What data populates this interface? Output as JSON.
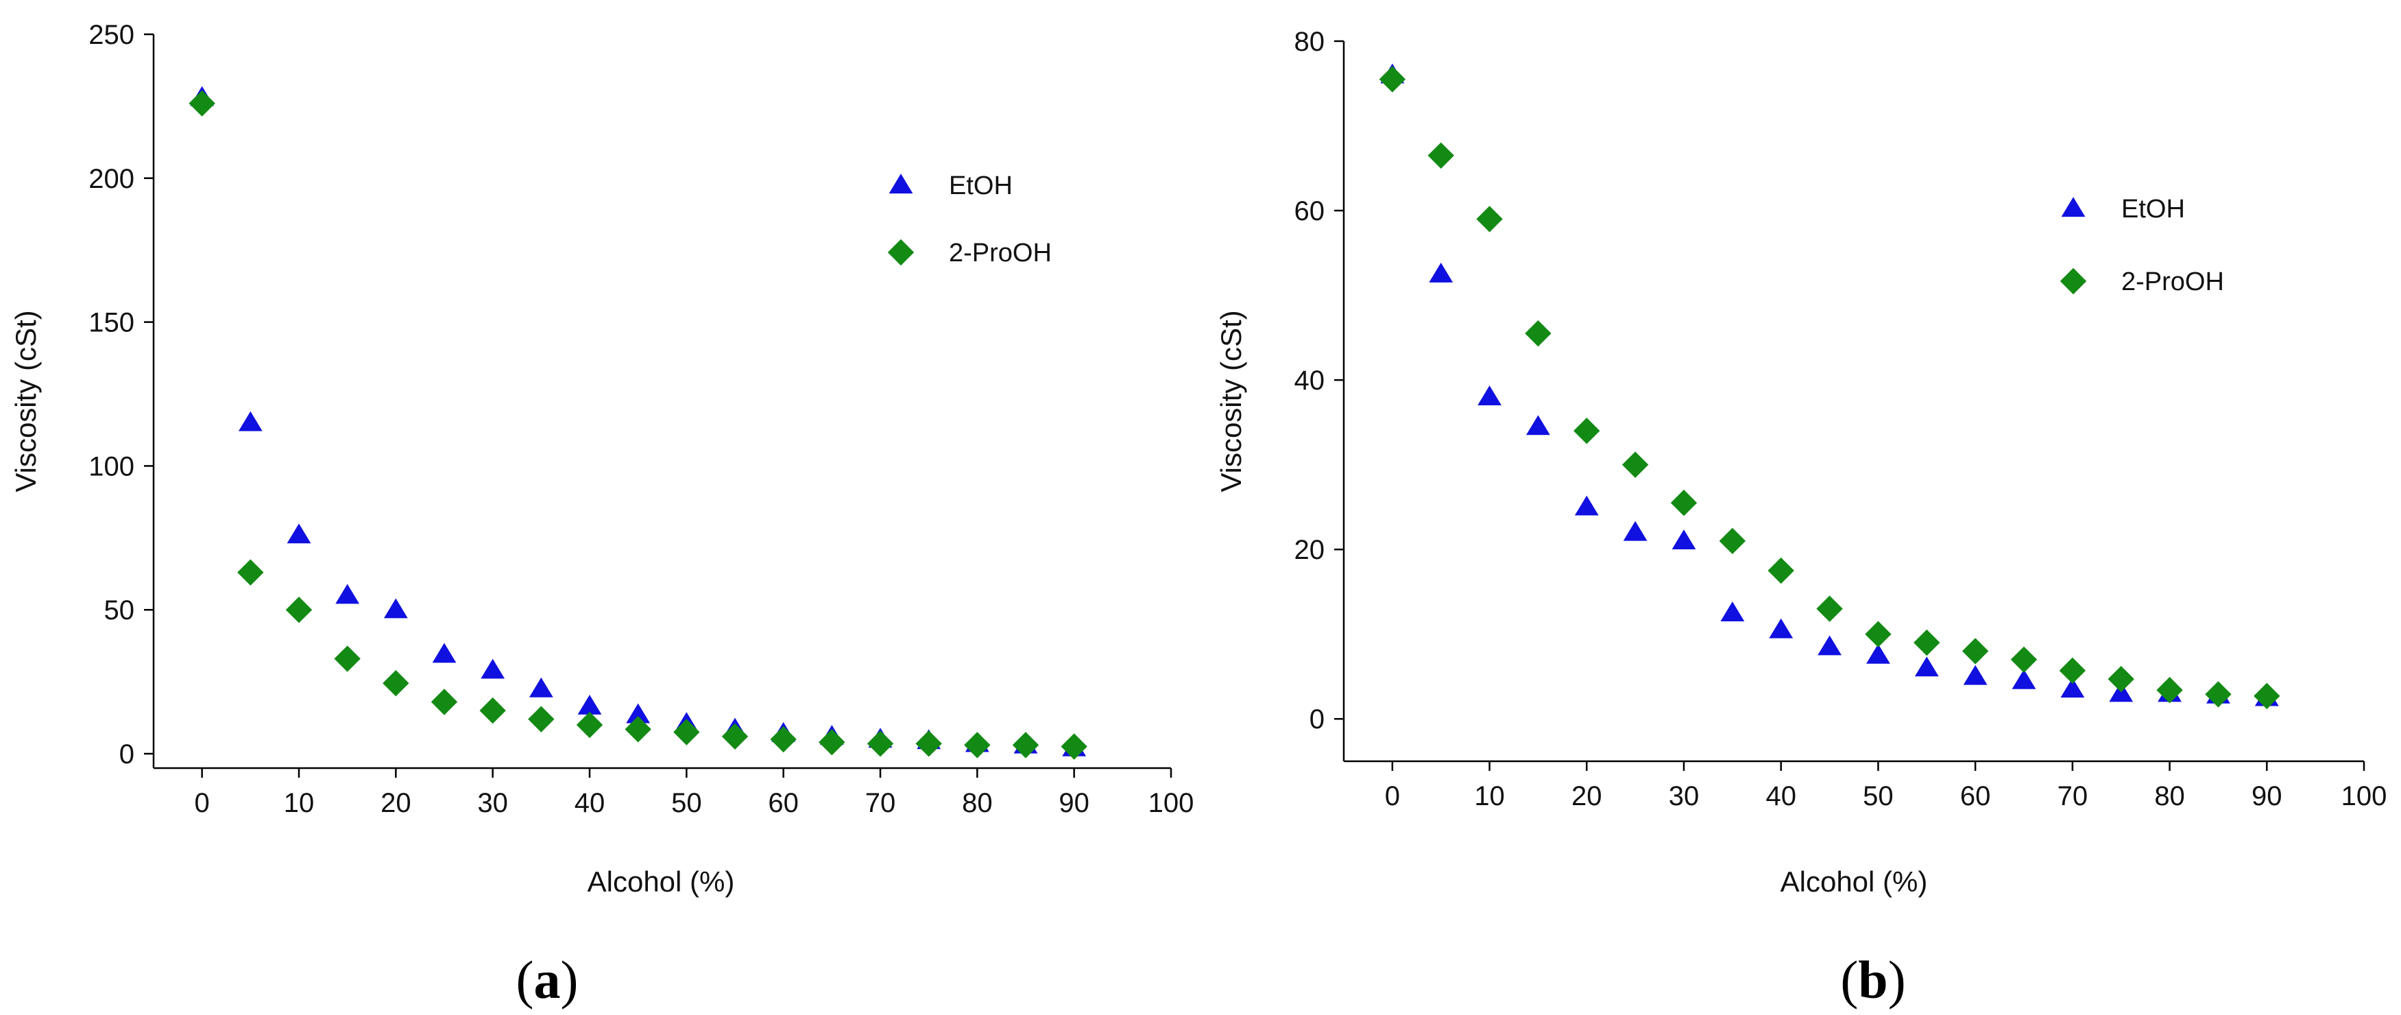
{
  "colors": {
    "etoh": "#1010e0",
    "proh": "#138a13",
    "axis": "#000000"
  },
  "chart_data": [
    {
      "panel": "a",
      "type": "scatter",
      "caption": {
        "open": "(",
        "letter": "a",
        "close": ")"
      },
      "xlabel": "Alcohol (%)",
      "ylabel": "Viscosity (cSt)",
      "xlim": [
        -5,
        100
      ],
      "ylim": [
        -5,
        250
      ],
      "xticks": [
        0,
        10,
        20,
        30,
        40,
        50,
        60,
        70,
        80,
        90,
        100
      ],
      "yticks": [
        0,
        50,
        100,
        150,
        200,
        250
      ],
      "grid": false,
      "legend_position": "top-right",
      "series": [
        {
          "name": "EtOH",
          "marker": "triangle",
          "color_key": "etoh",
          "x": [
            0,
            5,
            10,
            15,
            20,
            25,
            30,
            35,
            40,
            45,
            50,
            55,
            60,
            65,
            70,
            75,
            80,
            85,
            90
          ],
          "y": [
            228,
            115,
            76,
            55,
            50,
            34.5,
            29,
            22.5,
            16.5,
            13.5,
            10.5,
            8.5,
            7,
            6,
            5,
            4.5,
            3.5,
            3,
            2
          ]
        },
        {
          "name": "2-ProOH",
          "marker": "diamond",
          "color_key": "proh",
          "x": [
            0,
            5,
            10,
            15,
            20,
            25,
            30,
            35,
            40,
            45,
            50,
            55,
            60,
            65,
            70,
            75,
            80,
            85,
            90
          ],
          "y": [
            226,
            63,
            50,
            33,
            24.5,
            18,
            15,
            12,
            10,
            8.5,
            7.5,
            6,
            5,
            4,
            3.5,
            3.5,
            3,
            3,
            2.5
          ]
        }
      ]
    },
    {
      "panel": "b",
      "type": "scatter",
      "caption": {
        "open": "(",
        "letter": "b",
        "close": ")"
      },
      "xlabel": "Alcohol (%)",
      "ylabel": "Viscosity (cSt)",
      "xlim": [
        -5,
        100
      ],
      "ylim": [
        -5,
        80
      ],
      "xticks": [
        0,
        10,
        20,
        30,
        40,
        50,
        60,
        70,
        80,
        90,
        100
      ],
      "yticks": [
        0,
        20,
        40,
        60,
        80
      ],
      "grid": false,
      "legend_position": "top-right",
      "series": [
        {
          "name": "EtOH",
          "marker": "triangle",
          "color_key": "etoh",
          "x": [
            0,
            5,
            10,
            15,
            20,
            25,
            30,
            35,
            40,
            45,
            50,
            55,
            60,
            65,
            70,
            75,
            80,
            85,
            90
          ],
          "y": [
            76,
            52.5,
            38,
            34.5,
            25,
            22,
            21,
            12.5,
            10.5,
            8.5,
            7.5,
            6,
            5,
            4.5,
            3.5,
            3,
            3,
            2.8,
            2.5
          ]
        },
        {
          "name": "2-ProOH",
          "marker": "diamond",
          "color_key": "proh",
          "x": [
            0,
            5,
            10,
            15,
            20,
            25,
            30,
            35,
            40,
            45,
            50,
            55,
            60,
            65,
            70,
            75,
            80,
            85,
            90
          ],
          "y": [
            75.5,
            66.5,
            59,
            45.5,
            34,
            30,
            25.5,
            21,
            17.5,
            13,
            10,
            9,
            8,
            7,
            5.7,
            4.7,
            3.4,
            2.9,
            2.7
          ]
        }
      ]
    }
  ]
}
